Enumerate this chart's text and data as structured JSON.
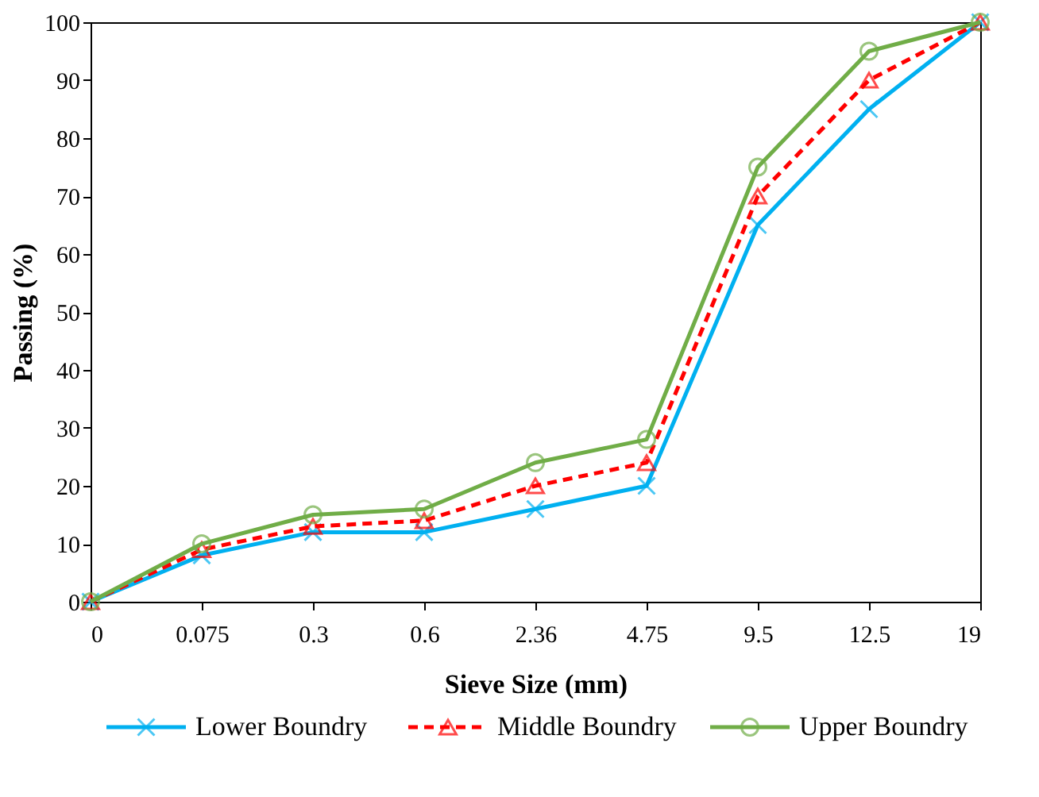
{
  "chart_data": {
    "type": "line",
    "xlabel": "Sieve Size (mm)",
    "ylabel": "Passing (%)",
    "categories": [
      "0",
      "0.075",
      "0.3",
      "0.6",
      "2.36",
      "4.75",
      "9.5",
      "12.5",
      "19"
    ],
    "ylim": [
      0,
      100
    ],
    "yticks": [
      0,
      10,
      20,
      30,
      40,
      50,
      60,
      70,
      80,
      90,
      100
    ],
    "grid": false,
    "legend": "bottom",
    "series": [
      {
        "name": "Lower Boundry",
        "color": "#00b0f0",
        "marker": "cross",
        "line_style": "solid",
        "values": [
          0,
          8,
          12,
          12,
          16,
          20,
          65,
          85,
          100
        ]
      },
      {
        "name": "Middle Boundry",
        "color": "#ff0000",
        "marker": "triangle",
        "line_style": "dashed",
        "values": [
          0,
          9,
          13,
          14,
          20,
          24,
          70,
          90,
          100
        ]
      },
      {
        "name": "Upper Boundry",
        "color": "#70ad47",
        "marker": "circle",
        "line_style": "solid",
        "values": [
          0,
          10,
          15,
          16,
          24,
          28,
          75,
          95,
          100
        ]
      }
    ]
  }
}
